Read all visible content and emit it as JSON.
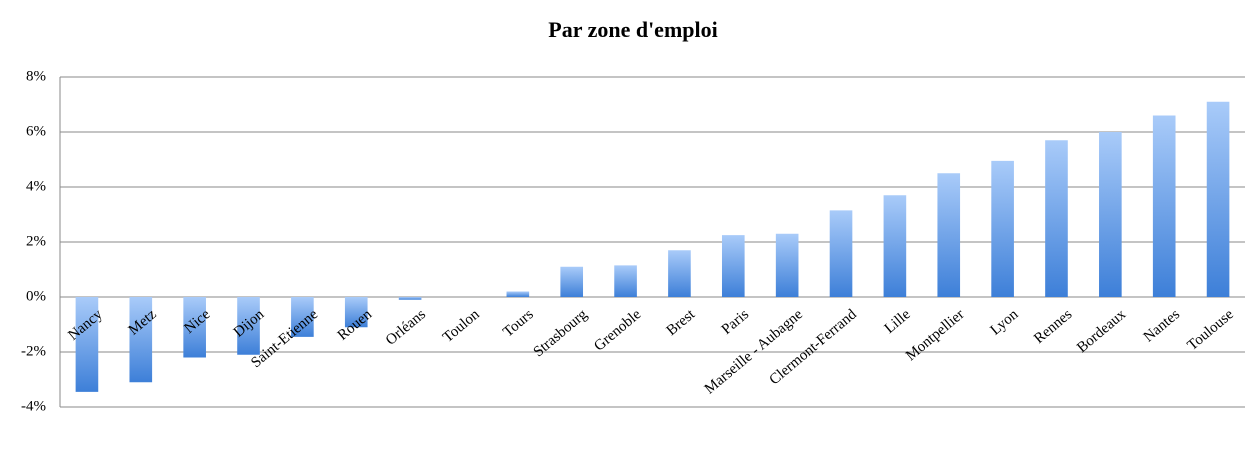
{
  "chart_data": {
    "type": "bar",
    "title": "Par zone d'emploi",
    "categories": [
      "Nancy",
      "Metz",
      "Nice",
      "Dijon",
      "Saint-Etienne",
      "Rouen",
      "Orléans",
      "Toulon",
      "Tours",
      "Strasbourg",
      "Grenoble",
      "Brest",
      "Paris",
      "Marseille - Aubagne",
      "Clermont-Ferrand",
      "Lille",
      "Montpellier",
      "Lyon",
      "Rennes",
      "Bordeaux",
      "Nantes",
      "Toulouse"
    ],
    "values": [
      -3.45,
      -3.1,
      -2.2,
      -2.1,
      -1.45,
      -1.1,
      -0.1,
      0,
      0.2,
      1.1,
      1.15,
      1.7,
      2.25,
      2.3,
      3.15,
      3.7,
      4.5,
      4.95,
      5.7,
      6.0,
      6.6,
      7.1
    ],
    "color": "#3d7fd8",
    "ylim": [
      -4,
      8
    ],
    "yticks": [
      {
        "value": -4,
        "label": "-4%"
      },
      {
        "value": -2,
        "label": "-2%"
      },
      {
        "value": 0,
        "label": "0%"
      },
      {
        "value": 2,
        "label": "2%"
      },
      {
        "value": 4,
        "label": "4%"
      },
      {
        "value": 6,
        "label": "6%"
      },
      {
        "value": 8,
        "label": "8%"
      }
    ],
    "grid": true
  }
}
